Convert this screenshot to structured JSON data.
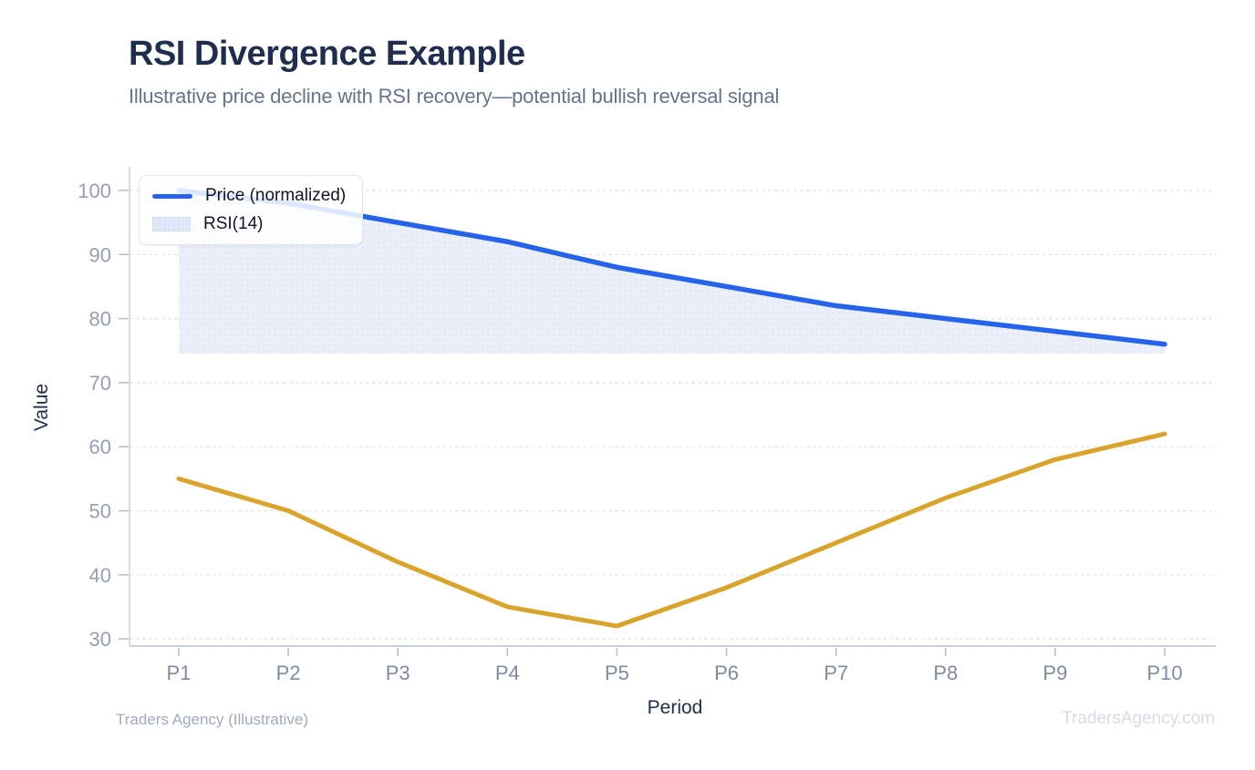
{
  "header": {
    "title": "RSI Divergence Example",
    "subtitle": "Illustrative price decline with RSI recovery—potential bullish reversal signal"
  },
  "chart_data": {
    "type": "line",
    "categories": [
      "P1",
      "P2",
      "P3",
      "P4",
      "P5",
      "P6",
      "P7",
      "P8",
      "P9",
      "P10"
    ],
    "series": [
      {
        "name": "Price (normalized)",
        "values": [
          100,
          98,
          95,
          92,
          88,
          85,
          82,
          80,
          78,
          76
        ],
        "color": "#2563eb",
        "style": "line-with-area-fill",
        "fill_to": 74.5,
        "fill_color": "#e9eef9"
      },
      {
        "name": "RSI(14)",
        "values": [
          55,
          50,
          42,
          35,
          32,
          38,
          45,
          52,
          58,
          62
        ],
        "color": "#d9a42c",
        "style": "line"
      }
    ],
    "title": "RSI Divergence Example",
    "xlabel": "Period",
    "ylabel": "Value",
    "yticks": [
      30,
      40,
      50,
      60,
      70,
      80,
      90,
      100
    ],
    "ylim": [
      28.5,
      103.5
    ],
    "grid": "horizontal-dashed",
    "legend_position": "upper-left"
  },
  "legend": {
    "items": [
      {
        "label": "Price (normalized)",
        "swatch": "line",
        "color": "#2563eb"
      },
      {
        "label": "RSI(14)",
        "swatch": "patch",
        "color": "#e2e9f8"
      }
    ]
  },
  "footer": {
    "left": "Traders Agency (Illustrative)",
    "right": "TradersAgency.com"
  },
  "colors": {
    "title_text": "#1f2d4e",
    "subtitle_text": "#64748b",
    "price_line": "#2563eb",
    "rsi_line": "#d9a42c",
    "area_fill": "#e9eef9",
    "gridline": "#dde5f0",
    "spine": "#c9d3df",
    "y_tick_text": "#96a0b2",
    "x_tick_text": "#7e8ba1",
    "footer_left_text": "#9fabbd",
    "footer_right_text": "#d6dce8"
  }
}
